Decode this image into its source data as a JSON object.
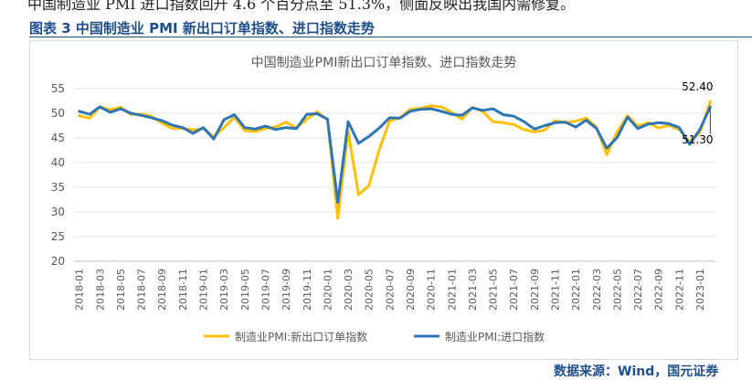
{
  "page": {
    "top_text": "中国制造业 PMI 进口指数回升 4.6 个百分点至 51.3%，侧面反映出我国内需修复。",
    "figure_caption": "图表 3  中国制造业 PMI 新出口订单指数、进口指数走势",
    "source_text": "数据来源：Wind，国元证券"
  },
  "colors": {
    "series_export": "#FFC000",
    "series_import": "#2E75B6",
    "caption": "#1f4e8c"
  },
  "chart_data": {
    "type": "line",
    "title": "中国制造业PMI新出口订单指数、进口指数走势",
    "xlabel": "",
    "ylabel": "",
    "ylim": [
      20,
      55
    ],
    "yticks": [
      20,
      25,
      30,
      35,
      40,
      45,
      50,
      55
    ],
    "grid": true,
    "legend_position": "bottom",
    "x": [
      "2018-01",
      "2018-02",
      "2018-03",
      "2018-04",
      "2018-05",
      "2018-06",
      "2018-07",
      "2018-08",
      "2018-09",
      "2018-10",
      "2018-11",
      "2018-12",
      "2019-01",
      "2019-02",
      "2019-03",
      "2019-04",
      "2019-05",
      "2019-06",
      "2019-07",
      "2019-08",
      "2019-09",
      "2019-10",
      "2019-11",
      "2019-12",
      "2020-01",
      "2020-02",
      "2020-03",
      "2020-04",
      "2020-05",
      "2020-06",
      "2020-07",
      "2020-08",
      "2020-09",
      "2020-10",
      "2020-11",
      "2020-12",
      "2021-01",
      "2021-02",
      "2021-03",
      "2021-04",
      "2021-05",
      "2021-06",
      "2021-07",
      "2021-08",
      "2021-09",
      "2021-10",
      "2021-11",
      "2021-12",
      "2022-01",
      "2022-02",
      "2022-03",
      "2022-04",
      "2022-05",
      "2022-06",
      "2022-07",
      "2022-08",
      "2022-09",
      "2022-10",
      "2022-11",
      "2022-12",
      "2023-01",
      "2023-02"
    ],
    "tick_labels": [
      "2018-01",
      "2018-03",
      "2018-05",
      "2018-07",
      "2018-09",
      "2018-11",
      "2019-01",
      "2019-03",
      "2019-05",
      "2019-07",
      "2019-09",
      "2019-11",
      "2020-01",
      "2020-03",
      "2020-05",
      "2020-07",
      "2020-09",
      "2020-11",
      "2021-01",
      "2021-03",
      "2021-05",
      "2021-07",
      "2021-09",
      "2021-11",
      "2022-01",
      "2022-03",
      "2022-05",
      "2022-07",
      "2022-09",
      "2022-11",
      "2023-01"
    ],
    "series": [
      {
        "name": "制造业PMI:新出口订单指数",
        "color": "#FFC000",
        "values": [
          49.5,
          49.0,
          51.3,
          50.7,
          51.2,
          49.8,
          49.8,
          49.4,
          48.0,
          46.9,
          47.0,
          46.6,
          46.9,
          45.2,
          47.1,
          49.2,
          46.5,
          46.3,
          46.9,
          47.2,
          48.2,
          47.0,
          48.8,
          50.3,
          48.7,
          28.7,
          46.4,
          33.5,
          35.3,
          42.6,
          48.4,
          49.1,
          50.8,
          51.0,
          51.5,
          51.3,
          50.2,
          48.8,
          51.2,
          50.4,
          48.3,
          48.1,
          47.7,
          46.7,
          46.2,
          46.6,
          48.5,
          48.1,
          48.4,
          49.0,
          47.2,
          41.6,
          46.2,
          49.5,
          47.4,
          48.1,
          47.0,
          47.6,
          46.7,
          44.2,
          46.1,
          52.4
        ]
      },
      {
        "name": "制造业PMI:进口指数",
        "color": "#2E75B6",
        "values": [
          50.4,
          49.8,
          51.3,
          50.2,
          50.9,
          50.0,
          49.6,
          49.1,
          48.5,
          47.6,
          47.1,
          45.9,
          47.1,
          44.8,
          48.7,
          49.7,
          47.1,
          46.8,
          47.4,
          46.7,
          47.1,
          46.9,
          49.8,
          49.9,
          48.8,
          31.9,
          48.3,
          43.9,
          45.3,
          47.0,
          49.1,
          49.0,
          50.4,
          50.8,
          50.9,
          50.4,
          49.8,
          49.6,
          51.1,
          50.6,
          50.9,
          49.7,
          49.4,
          48.3,
          46.8,
          47.5,
          48.1,
          48.2,
          47.2,
          48.6,
          46.9,
          42.9,
          45.1,
          49.2,
          46.9,
          47.8,
          48.1,
          47.9,
          47.1,
          43.7,
          46.7,
          51.3
        ]
      }
    ],
    "annotations": [
      {
        "series": 0,
        "label": "52.40"
      },
      {
        "series": 1,
        "label": "51.30"
      }
    ]
  }
}
